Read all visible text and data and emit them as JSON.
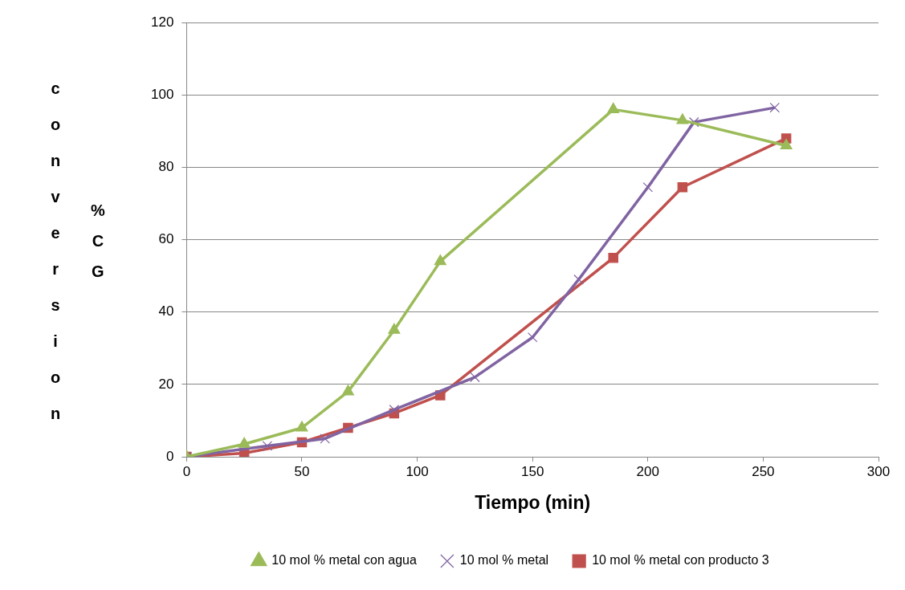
{
  "chart_data": {
    "type": "line",
    "xlabel": "Tiempo (min)",
    "ylabel": "conversion",
    "annotations": [
      "% CG"
    ],
    "xlim": [
      0,
      300
    ],
    "xticks": [
      0,
      50,
      100,
      150,
      200,
      250,
      300
    ],
    "ylim": [
      0,
      120
    ],
    "yticks": [
      0,
      20,
      40,
      60,
      80,
      100,
      120
    ],
    "grid": "y",
    "legend": "bottom",
    "series": [
      {
        "name": "10 mol % metal con agua",
        "color": "#9bbb59",
        "marker": "triangle",
        "x": [
          0,
          25,
          50,
          70,
          90,
          110,
          185,
          215,
          260
        ],
        "values": [
          0,
          3.5,
          8,
          18,
          35,
          54,
          96,
          93,
          86
        ]
      },
      {
        "name": "10 mol % metal",
        "color": "#8064a2",
        "marker": "cross",
        "x": [
          0,
          35,
          60,
          90,
          125,
          150,
          170,
          200,
          220,
          255
        ],
        "values": [
          0,
          3,
          5,
          13,
          22,
          33,
          49,
          74.5,
          92.5,
          96.5
        ]
      },
      {
        "name": "10 mol % metal con producto 3",
        "color": "#c0504d",
        "marker": "square",
        "x": [
          0,
          25,
          50,
          70,
          90,
          110,
          185,
          215,
          260
        ],
        "values": [
          0,
          1,
          4,
          8,
          12,
          17,
          55,
          74.5,
          88
        ]
      }
    ]
  }
}
